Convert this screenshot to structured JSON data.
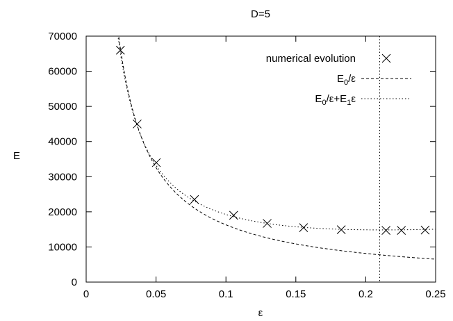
{
  "chart_data": {
    "type": "line",
    "title": "D=5",
    "xlabel": "ε",
    "ylabel": "E",
    "xlim": [
      0,
      0.25
    ],
    "ylim": [
      0,
      70000
    ],
    "grid": false,
    "legend_position": "top-right",
    "x_ticks": [
      "0",
      "0.05",
      "0.1",
      "0.15",
      "0.2",
      "0.25"
    ],
    "y_ticks": [
      "0",
      "10000",
      "20000",
      "30000",
      "40000",
      "50000",
      "60000",
      "70000"
    ],
    "vertical_line_x": 0.21,
    "series": [
      {
        "name": "numerical evolution",
        "style": "markers-x",
        "x": [
          0.0245,
          0.0365,
          0.0502,
          0.0775,
          0.1055,
          0.1295,
          0.1555,
          0.1825,
          0.2145,
          0.2255,
          0.2425
        ],
        "y": [
          66000,
          45000,
          34000,
          23500,
          19000,
          16700,
          15500,
          14900,
          14700,
          14700,
          14800
        ]
      },
      {
        "name": "E0/ε",
        "legend_parts": [
          {
            "text": "E",
            "sub": false
          },
          {
            "text": "0",
            "sub": true
          },
          {
            "text": "/ε",
            "sub": false
          }
        ],
        "style": "dashed",
        "E0": 1630
      },
      {
        "name": "E0/ε+E1ε",
        "legend_parts": [
          {
            "text": "E",
            "sub": false
          },
          {
            "text": "0",
            "sub": true
          },
          {
            "text": "/ε+E",
            "sub": false
          },
          {
            "text": "1",
            "sub": true
          },
          {
            "text": "ε",
            "sub": false
          }
        ],
        "style": "dotted",
        "E0": 1575,
        "E1": 35000
      }
    ]
  }
}
